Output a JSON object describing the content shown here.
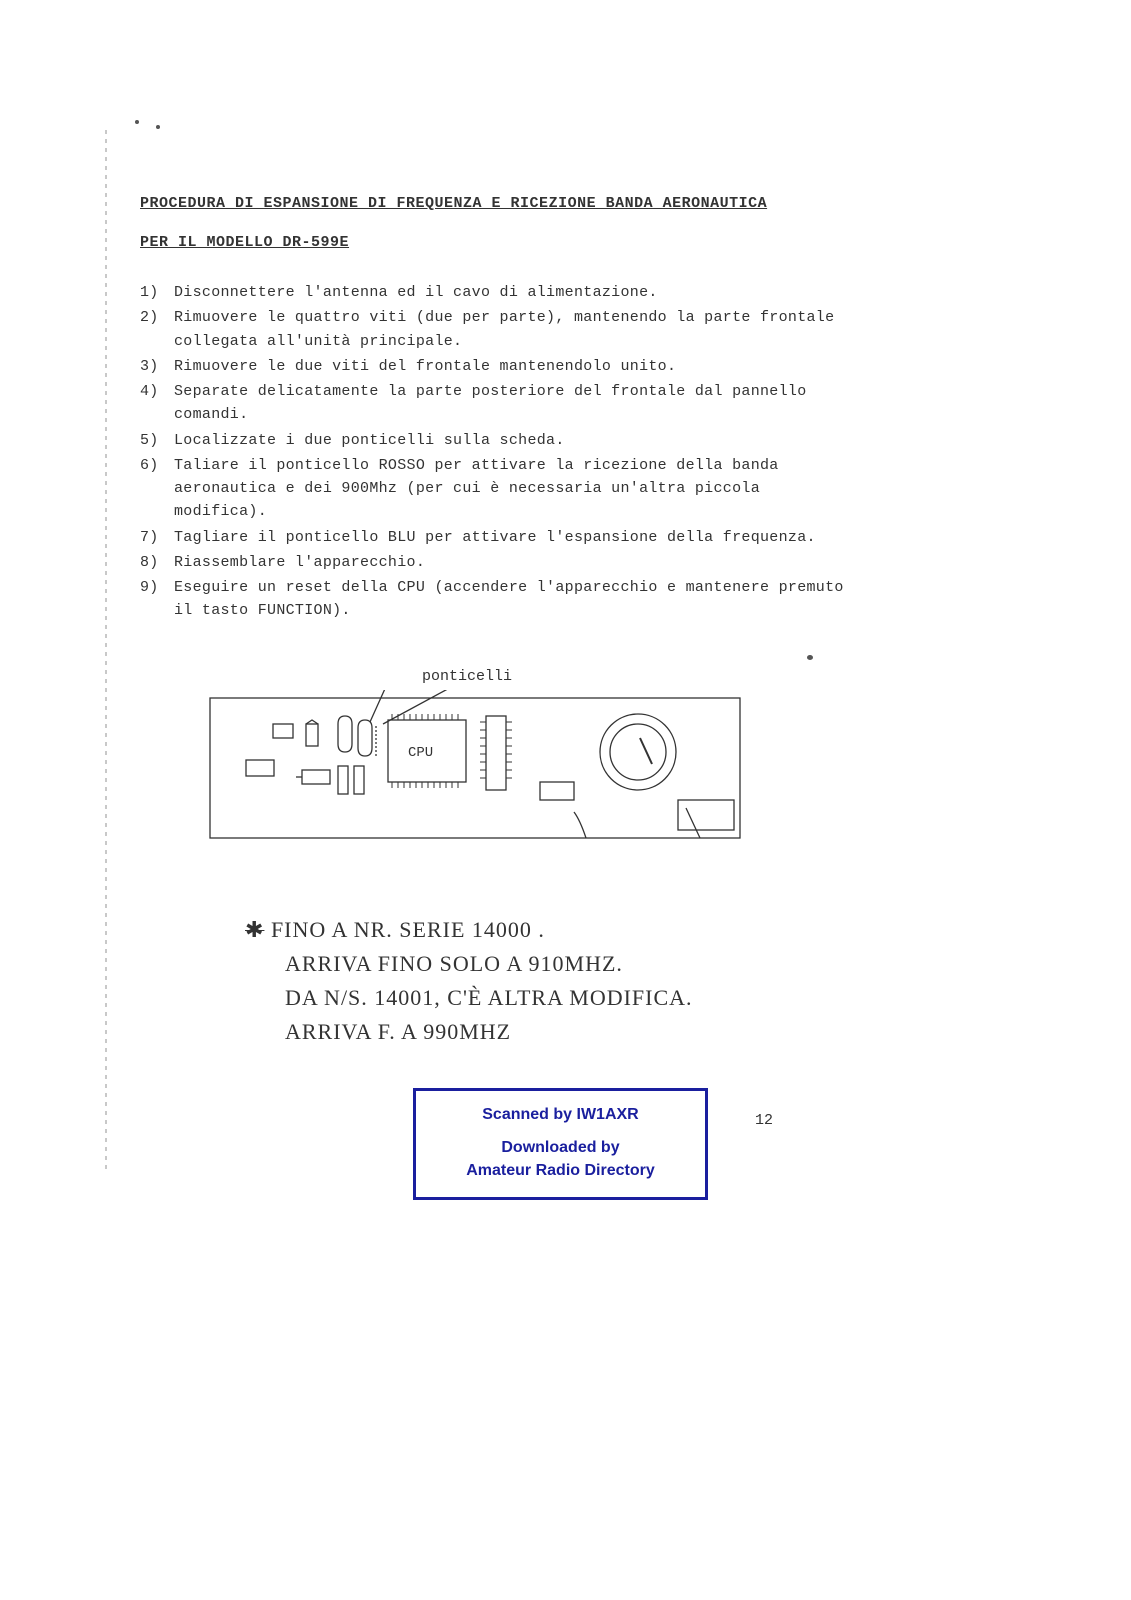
{
  "title": "PROCEDURA DI ESPANSIONE DI FREQUENZA E RICEZIONE BANDA AERONAUTICA",
  "subtitle": "PER IL MODELLO DR-599E",
  "steps": [
    {
      "n": "1)",
      "t": "Disconnettere l'antenna ed il cavo di alimentazione."
    },
    {
      "n": "2)",
      "t": "Rimuovere le quattro  viti (due per parte), mantenendo la parte frontale collegata all'unità principale."
    },
    {
      "n": "3)",
      "t": "Rimuovere le due viti del frontale mantenendolo unito."
    },
    {
      "n": "4)",
      "t": "Separate delicatamente la parte posteriore del frontale dal pannello comandi."
    },
    {
      "n": "5)",
      "t": "Localizzate i due ponticelli sulla scheda."
    },
    {
      "n": "6)",
      "t": "Taliare il ponticello ROSSO per attivare la ricezione della banda aeronautica e dei 900Mhz (per cui è necessaria un'altra piccola modifica)."
    },
    {
      "n": "7)",
      "t": "Tagliare il ponticello BLU per attivare l'espansione della frequenza."
    },
    {
      "n": "8)",
      "t": "Riassemblare l'apparecchio."
    },
    {
      "n": "9)",
      "t": "Eseguire un reset della CPU (accendere l'apparecchio e mantenere premuto il tasto FUNCTION)."
    }
  ],
  "diagram": {
    "label": "ponticelli",
    "cpu_label": "CPU",
    "outline_color": "#333333",
    "stroke_width": 1.3
  },
  "handwritten": {
    "lines": [
      "✱  FINO  A   NR. SERIE   14000 .",
      "ARRIVA  FINO  SOLO  A  910MHZ.",
      "DA   N/S.  14001,  C'È ALTRA MODIFICA.",
      "ARRIVA  F.  A   990MHZ"
    ],
    "strike_first_glyph": true
  },
  "stamp": {
    "line1": "Scanned by IW1AXR",
    "line2": "Downloaded by",
    "line3": "Amateur Radio Directory",
    "border_color": "#1a1f9e",
    "text_color": "#1a1f9e"
  },
  "page_number": "12",
  "colors": {
    "paper": "#ffffff",
    "ink": "#333333"
  }
}
